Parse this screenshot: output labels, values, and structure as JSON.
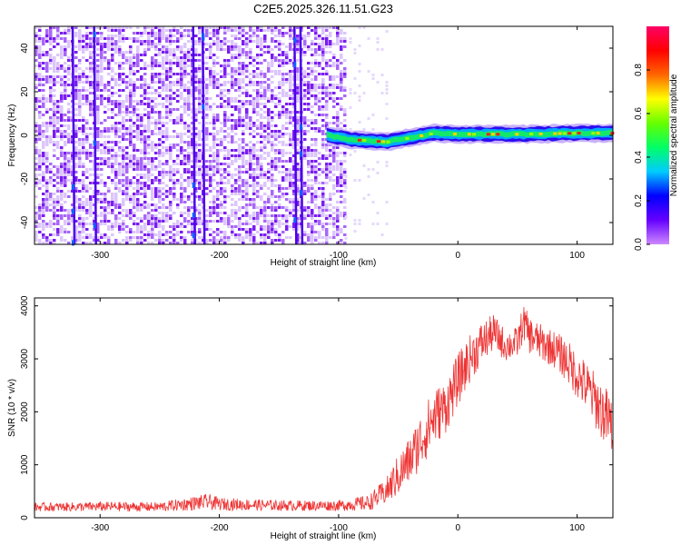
{
  "title": "C2E5.2025.326.11.51.G23",
  "chart_data": [
    {
      "type": "heatmap",
      "title": "C2E5.2025.326.11.51.G23",
      "xlabel": "Height of straight line (km)",
      "ylabel": "Frequency (Hz)",
      "xlim": [
        -355,
        130
      ],
      "ylim": [
        -50,
        50
      ],
      "x_ticks": [
        -300,
        -200,
        -100,
        0,
        100
      ],
      "y_ticks": [
        -40,
        -20,
        0,
        20,
        40
      ],
      "colorbar": {
        "label": "Normalized spectral amplitude",
        "range": [
          0,
          1
        ],
        "ticks": [
          "0.0",
          "0.2",
          "0.4",
          "0.6",
          "0.8"
        ],
        "colormap": [
          "#cc88ff",
          "#6600ff",
          "#0000ff",
          "#00ccff",
          "#00ff66",
          "#66ff00",
          "#ffff00",
          "#ff6600",
          "#ff0000",
          "#ff0066"
        ]
      },
      "noise_region": {
        "x_range": [
          -355,
          -95
        ],
        "freq_range": [
          -50,
          50
        ],
        "amplitude": 0.1
      },
      "bright_streaks_x": [
        -323,
        -305,
        -222,
        -214,
        -137,
        -132
      ],
      "carrier_track": [
        {
          "x": -110,
          "freq": 0
        },
        {
          "x": -90,
          "freq": -2
        },
        {
          "x": -60,
          "freq": -3
        },
        {
          "x": -40,
          "freq": -1
        },
        {
          "x": -20,
          "freq": 1
        },
        {
          "x": 0,
          "freq": 0.5
        },
        {
          "x": 50,
          "freq": 0.5
        },
        {
          "x": 100,
          "freq": 1
        },
        {
          "x": 130,
          "freq": 1
        }
      ]
    },
    {
      "type": "line",
      "xlabel": "Height of straight line (km)",
      "ylabel": "SNR (10 * v/v)",
      "xlim": [
        -355,
        130
      ],
      "ylim": [
        0,
        4150
      ],
      "x_ticks": [
        -300,
        -200,
        -100,
        0,
        100
      ],
      "y_ticks": [
        0,
        1000,
        2000,
        3000,
        4000
      ],
      "series": [
        {
          "name": "SNR",
          "color": "#ee3333",
          "x": [
            -355,
            -300,
            -250,
            -210,
            -200,
            -150,
            -100,
            -75,
            -60,
            -50,
            -40,
            -30,
            -20,
            -10,
            0,
            10,
            20,
            30,
            40,
            50,
            55,
            60,
            70,
            80,
            90,
            100,
            110,
            120,
            130
          ],
          "y": [
            200,
            210,
            205,
            300,
            260,
            230,
            230,
            280,
            500,
            800,
            1100,
            1500,
            1900,
            2100,
            2600,
            3000,
            3300,
            3500,
            3250,
            3300,
            3700,
            3450,
            3300,
            3200,
            3000,
            2700,
            2400,
            2050,
            1700
          ],
          "noise_amplitude": [
            80,
            90,
            90,
            150,
            120,
            100,
            100,
            150,
            250,
            400,
            450,
            550,
            550,
            500,
            500,
            450,
            400,
            350,
            300,
            300,
            350,
            350,
            350,
            350,
            400,
            450,
            500,
            550,
            600
          ]
        }
      ]
    }
  ]
}
